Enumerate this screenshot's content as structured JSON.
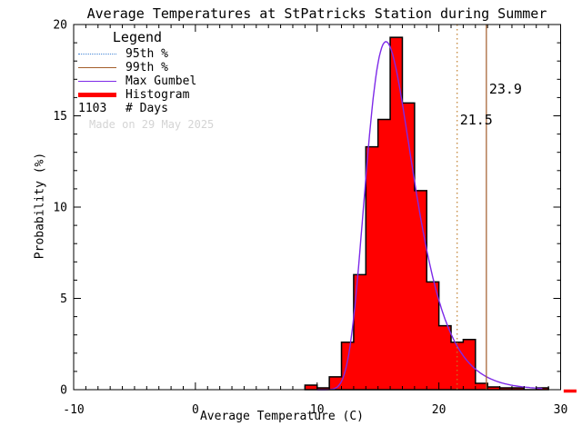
{
  "title": "Average Temperatures at StPatricks Station during Summer",
  "watermark": "Made on 29 May 2025",
  "legend": {
    "title": "Legend",
    "items": [
      {
        "label": "95th %",
        "sample": "dotted",
        "color": "#4486d6"
      },
      {
        "label": "99th %",
        "sample": "solid",
        "color": "#a35d2a"
      },
      {
        "label": "Max Gumbel",
        "sample": "solid",
        "color": "#7d2ae8"
      },
      {
        "label": "Histogram",
        "sample": "thick",
        "color": "#ff0000"
      },
      {
        "label": "# Days",
        "sample": "text",
        "text": "1103"
      }
    ]
  },
  "chart_data": {
    "type": "bar",
    "subtype": "histogram-with-gumbel-fit",
    "title": "Average Temperatures at StPatricks Station during Summer",
    "xlabel": "Average Temperature (C)",
    "ylabel": "Probability (%)",
    "xlim": [
      -10,
      30
    ],
    "ylim": [
      0,
      20
    ],
    "x_major_ticks": [
      -10,
      0,
      10,
      20,
      30
    ],
    "y_major_ticks": [
      0,
      5,
      10,
      15,
      20
    ],
    "x_minor_step": 1,
    "y_minor_step": 1,
    "grid": false,
    "n_days": 1103,
    "histogram": {
      "bin_start": 9,
      "bin_width": 1,
      "values_pct": [
        0.25,
        0.1,
        0.7,
        2.6,
        6.3,
        13.3,
        14.8,
        19.3,
        15.7,
        10.9,
        5.9,
        3.5,
        2.6,
        2.75,
        0.35,
        0.15,
        0.1,
        0.1,
        0,
        0.1
      ]
    },
    "gumbel_fit": {
      "mu": 15.65,
      "beta": 1.93,
      "curve_x_start": 10.0,
      "curve_x_end": 28.6
    },
    "percentiles": {
      "p95": {
        "value": 21.5,
        "label": "21.5",
        "line_style": "dotted"
      },
      "p99": {
        "value": 23.9,
        "label": "23.9",
        "line_style": "solid"
      }
    },
    "zero_line_overflow": {
      "from": 30.25,
      "to": 31.3
    }
  },
  "colors": {
    "axis": "#000000",
    "hist_fill": "#ff0000",
    "hist_outline": "#000000",
    "gumbel_line": "#7d2ae8",
    "p95_line": "#bf7e2c",
    "p95_label": "#4486d6",
    "p99_line": "#a35d2a",
    "p99_label": "#a35d2a",
    "watermark": "#d4d4d4"
  }
}
